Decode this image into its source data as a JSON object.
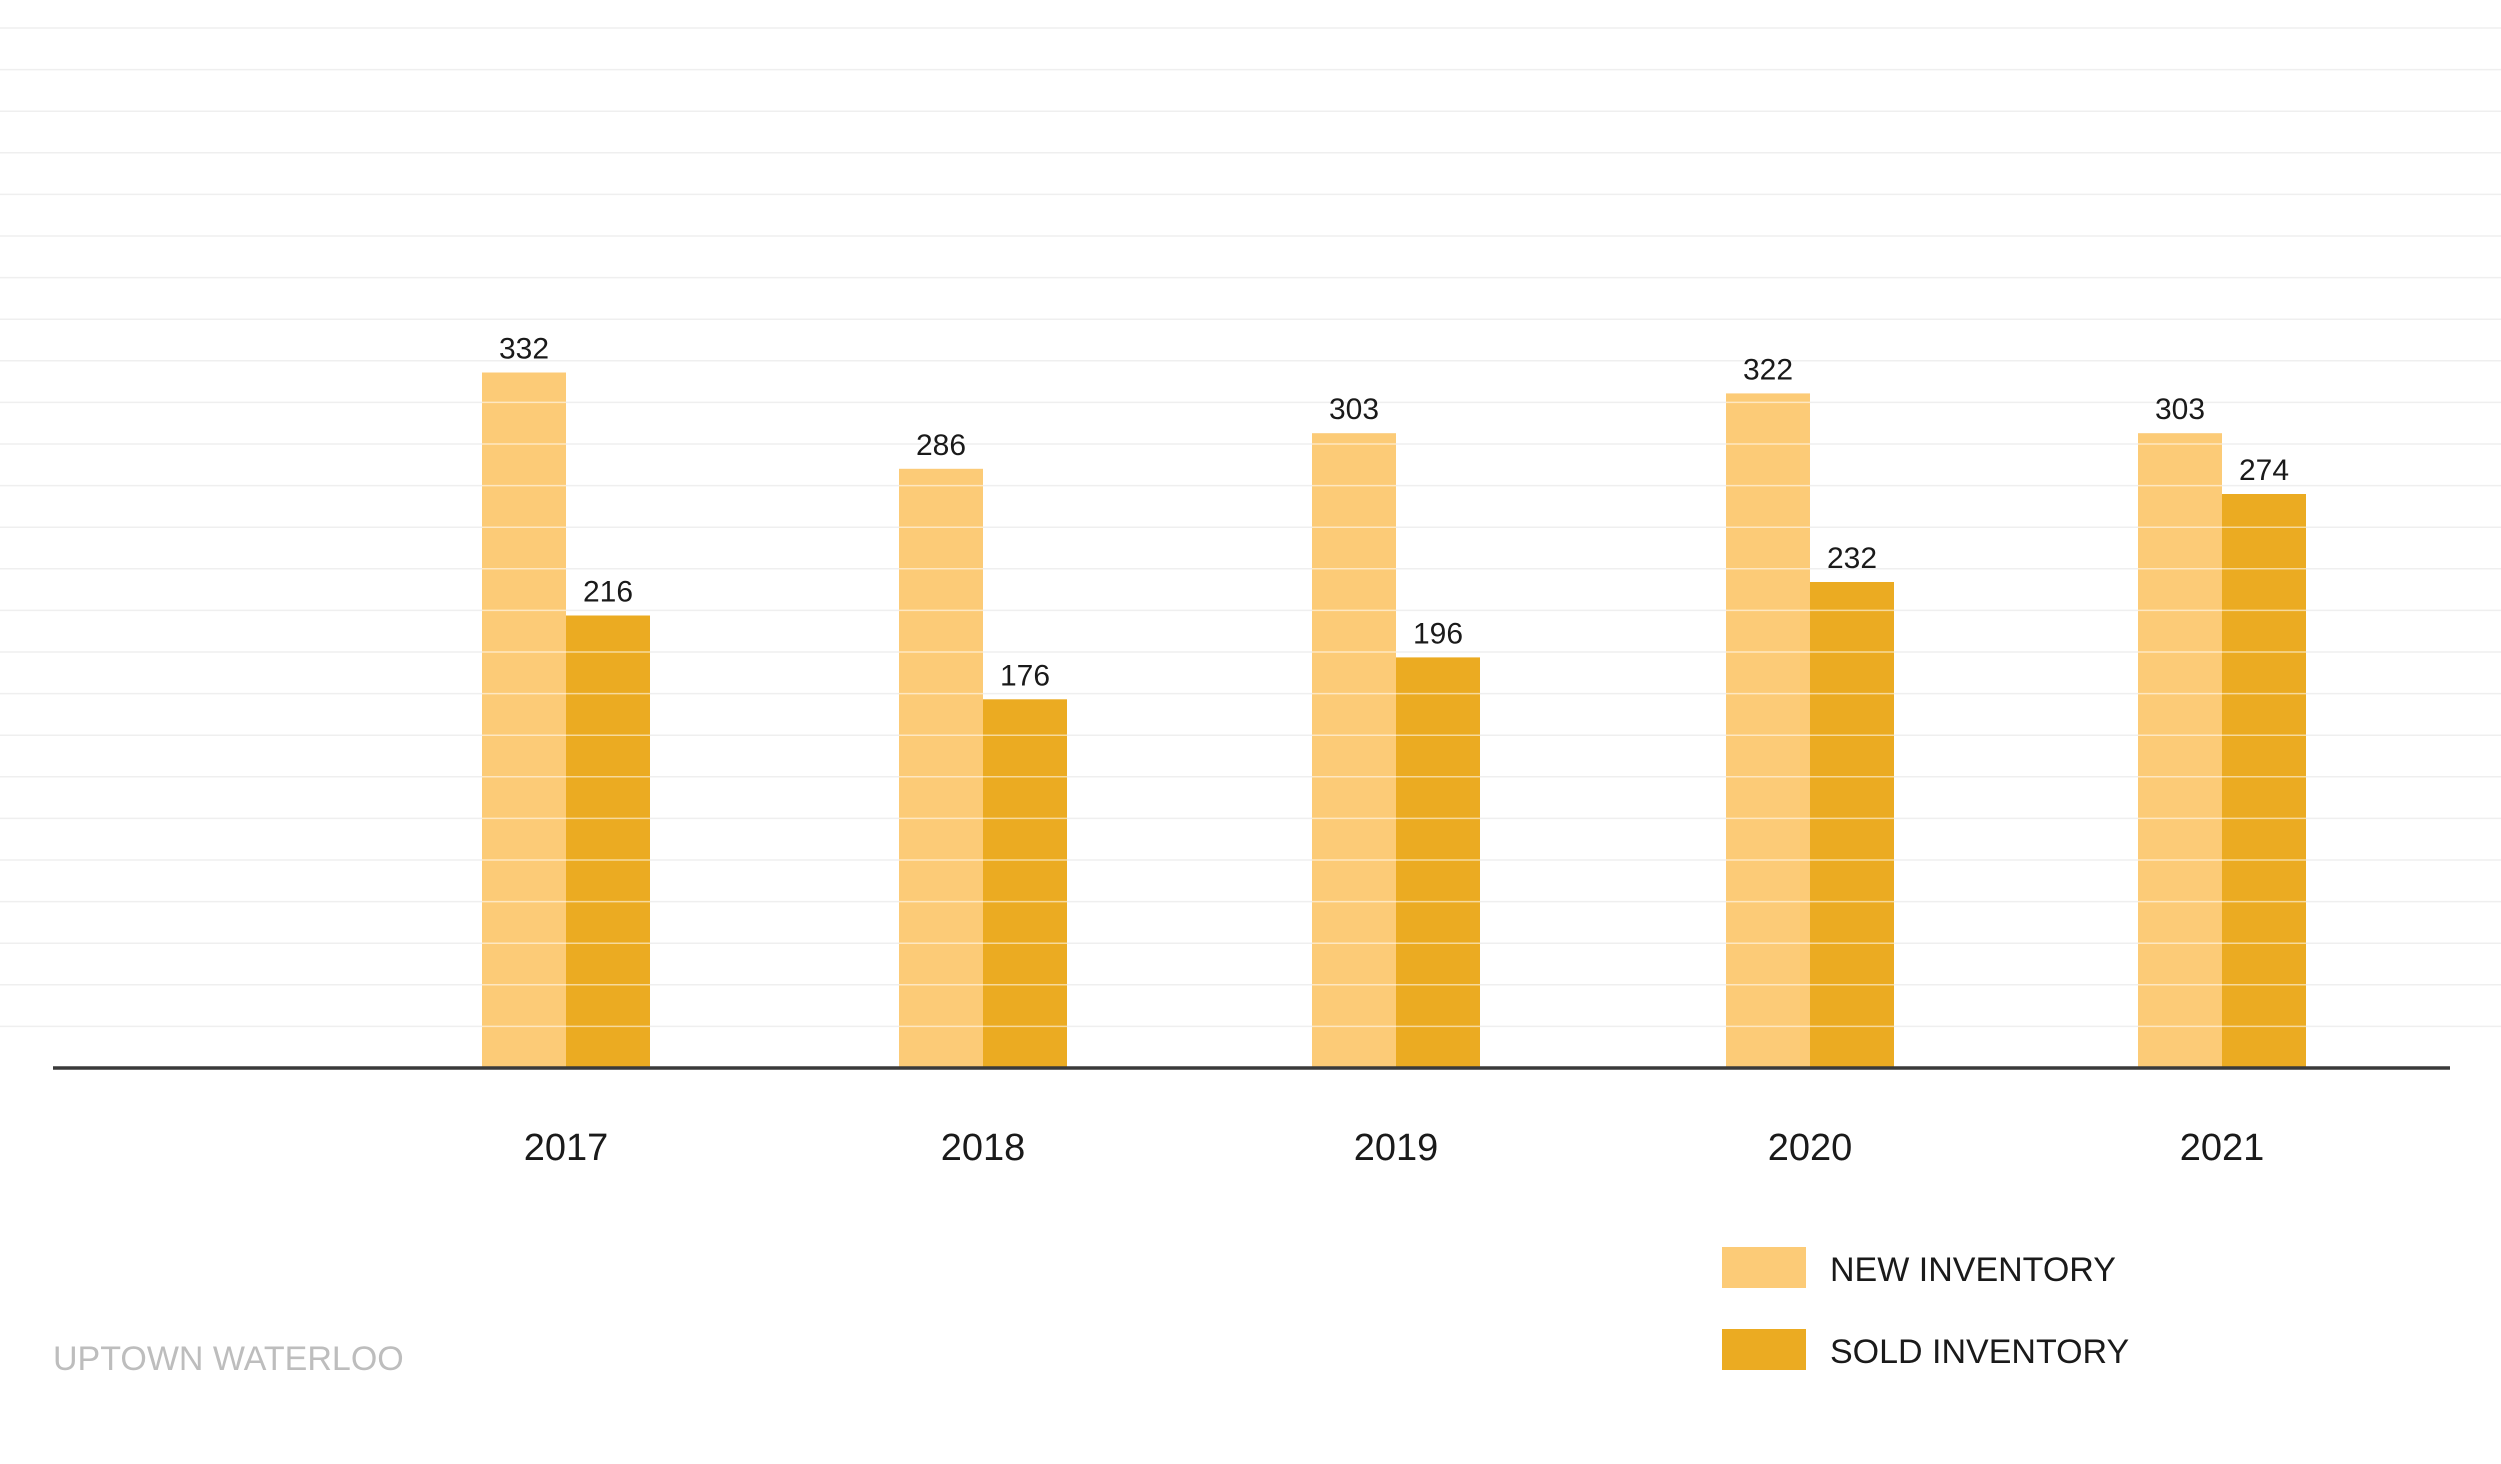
{
  "chart_data": {
    "type": "bar",
    "title": "",
    "xlabel": "",
    "ylabel": "",
    "categories": [
      "2017",
      "2018",
      "2019",
      "2020",
      "2021"
    ],
    "series": [
      {
        "name": "NEW INVENTORY",
        "values": [
          332,
          286,
          303,
          322,
          303
        ],
        "color": "#FCCB77"
      },
      {
        "name": "SOLD INVENTORY",
        "values": [
          216,
          176,
          196,
          232,
          274
        ],
        "color": "#EBAB22"
      }
    ],
    "ylim": [
      0,
      500
    ],
    "grid": true,
    "legend": "bottom-right",
    "source_label": "UPTOWN WATERLOO",
    "colors": {
      "background": "#FFFFFF",
      "gridline": "#EFEFEF",
      "axis": "#3A3A3A",
      "label_text": "#1A1A1A",
      "source_text": "#BDBDBD"
    }
  }
}
